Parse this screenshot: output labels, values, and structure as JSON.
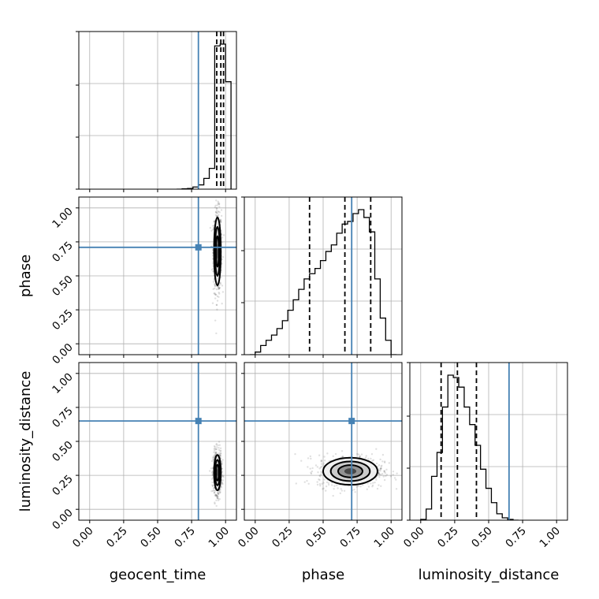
{
  "chart_data": {
    "type": "corner",
    "parameters": [
      "geocent_time",
      "phase",
      "luminosity_distance"
    ],
    "axis_labels": {
      "x": [
        "geocent_time",
        "phase",
        "luminosity_distance"
      ],
      "y": [
        "phase",
        "luminosity_distance"
      ]
    },
    "axis_range": [
      -0.08,
      1.08
    ],
    "tick_values": [
      0.0,
      0.25,
      0.5,
      0.75,
      1.0
    ],
    "tick_labels": [
      "0.00",
      "0.25",
      "0.50",
      "0.75",
      "1.00"
    ],
    "grid": true,
    "truth_color": "#4682b4",
    "hist_color": "#000000",
    "truths": {
      "geocent_time": 0.8,
      "phase": 0.71,
      "luminosity_distance": 0.65
    },
    "quantiles": {
      "geocent_time": [
        0.935,
        0.965,
        0.985
      ],
      "phase": [
        0.4,
        0.66,
        0.85
      ],
      "luminosity_distance": [
        0.15,
        0.27,
        0.41
      ]
    },
    "histograms": {
      "geocent_time": {
        "edges": [
          0.64,
          0.68,
          0.72,
          0.76,
          0.8,
          0.84,
          0.88,
          0.92,
          0.96,
          1.0,
          1.04
        ],
        "counts": [
          0,
          1,
          2,
          6,
          12,
          30,
          58,
          400,
          405,
          300
        ]
      },
      "phase": {
        "edges": [
          -0.04,
          0.0,
          0.04,
          0.08,
          0.12,
          0.16,
          0.2,
          0.24,
          0.28,
          0.32,
          0.36,
          0.4,
          0.44,
          0.48,
          0.52,
          0.56,
          0.6,
          0.64,
          0.68,
          0.72,
          0.76,
          0.8,
          0.84,
          0.88,
          0.92,
          0.96,
          1.0,
          1.04
        ],
        "counts": [
          0,
          2,
          7,
          11,
          15,
          20,
          26,
          34,
          42,
          50,
          58,
          62,
          66,
          72,
          79,
          84,
          93,
          100,
          102,
          108,
          111,
          105,
          94,
          58,
          28,
          11,
          0
        ]
      },
      "luminosity_distance": {
        "edges": [
          0.0,
          0.04,
          0.08,
          0.12,
          0.16,
          0.2,
          0.24,
          0.28,
          0.32,
          0.36,
          0.4,
          0.44,
          0.48,
          0.52,
          0.56,
          0.6,
          0.64,
          0.68,
          0.72
        ],
        "counts": [
          1,
          14,
          55,
          85,
          142,
          182,
          179,
          167,
          142,
          120,
          94,
          64,
          40,
          22,
          8,
          3,
          1,
          0
        ]
      }
    },
    "scatter_2d": [
      {
        "x": "geocent_time",
        "y": "phase",
        "center": [
          0.94,
          0.68
        ],
        "spread": [
          0.025,
          0.25
        ]
      },
      {
        "x": "geocent_time",
        "y": "luminosity_distance",
        "center": [
          0.94,
          0.27
        ],
        "spread": [
          0.025,
          0.13
        ]
      },
      {
        "x": "phase",
        "y": "luminosity_distance",
        "center": [
          0.7,
          0.28
        ],
        "spread": [
          0.2,
          0.1
        ]
      }
    ]
  }
}
